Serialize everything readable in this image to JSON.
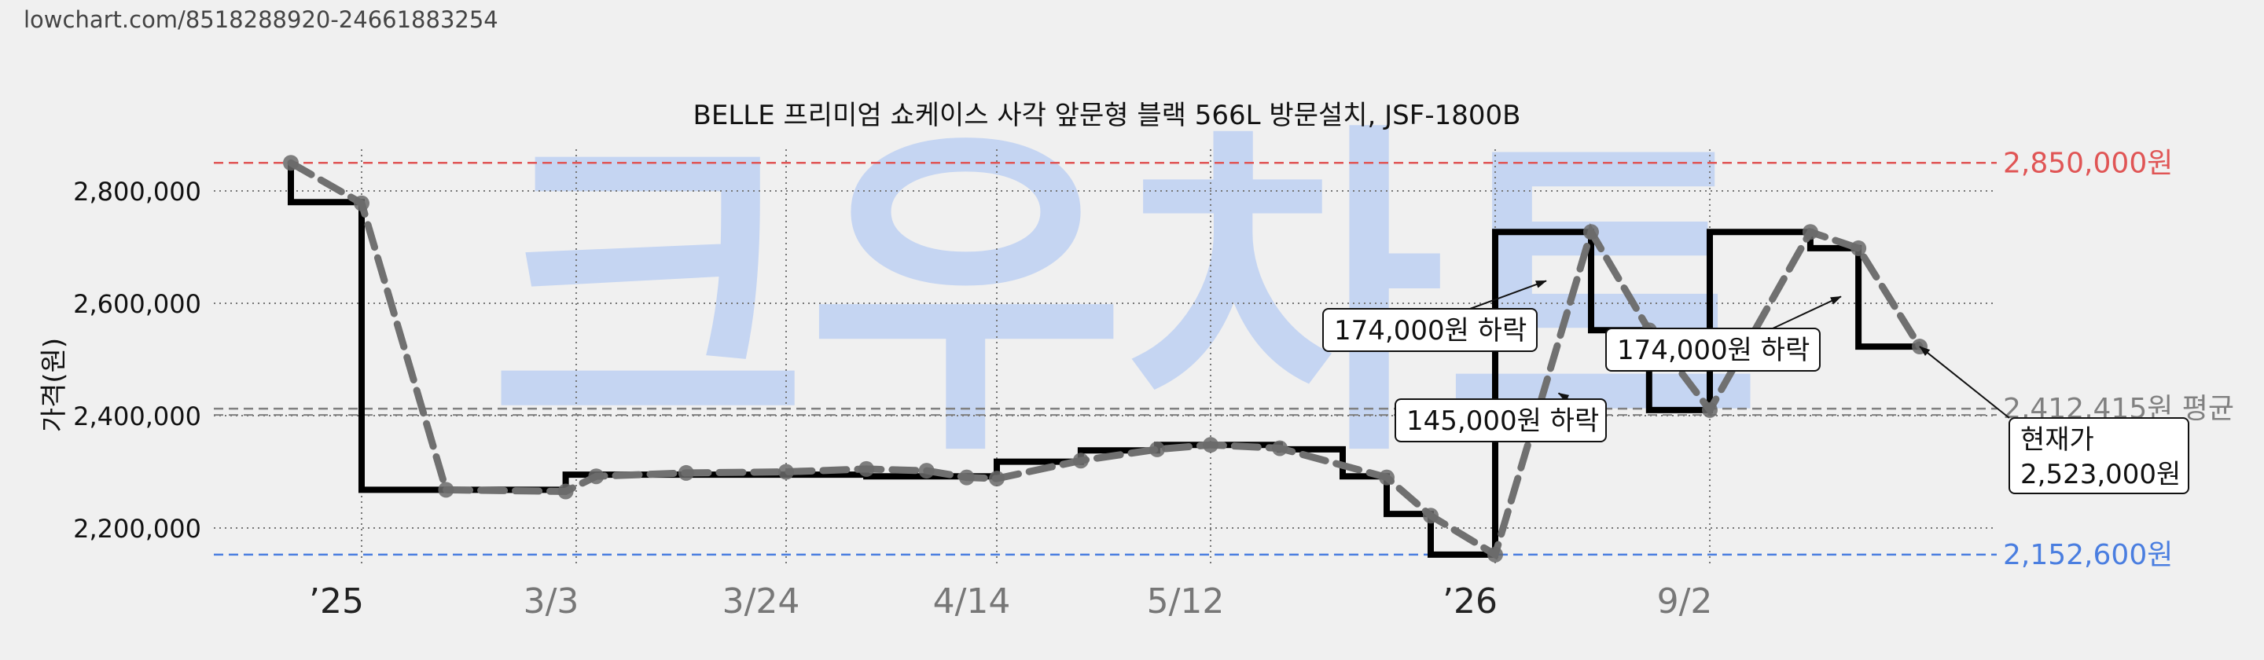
{
  "header": {
    "url": "lowchart.com/8518288920-24661883254"
  },
  "watermark": "크우차트",
  "chart_data": {
    "type": "line",
    "title": "BELLE 프리미엄 쇼케이스 사각 앞문형 블랙 566L 방문설치, JSF-1800B",
    "ylabel": "가격(원)",
    "xlabel": "",
    "ylim": [
      2140000,
      2870000
    ],
    "xlim": [
      "2024-12-16",
      "2026-10-30"
    ],
    "grid": true,
    "yticks": [
      {
        "value": 2200000,
        "label": "2,200,000"
      },
      {
        "value": 2400000,
        "label": "2,400,000"
      },
      {
        "value": 2600000,
        "label": "2,600,000"
      },
      {
        "value": 2800000,
        "label": "2,800,000"
      }
    ],
    "xticks": [
      {
        "date": "2025-01-01",
        "label": "’25",
        "emphasis": true
      },
      {
        "date": "2025-03-03",
        "label": "3/3",
        "emphasis": false
      },
      {
        "date": "2025-03-24",
        "label": "3/24",
        "emphasis": false
      },
      {
        "date": "2025-04-14",
        "label": "4/14",
        "emphasis": false
      },
      {
        "date": "2025-05-12",
        "label": "5/12",
        "emphasis": false
      },
      {
        "date": "2026-01-01",
        "label": "’26",
        "emphasis": true
      },
      {
        "date": "2026-09-02",
        "label": "9/2",
        "emphasis": false
      }
    ],
    "series": [
      {
        "style": "step",
        "color": "#000000",
        "points": [
          [
            "2024-12-20",
            2850000
          ],
          [
            "2024-12-20",
            2780000
          ],
          [
            "2025-01-01",
            2780000
          ],
          [
            "2025-01-01",
            2268000
          ],
          [
            "2025-02-28",
            2268000
          ],
          [
            "2025-02-28",
            2295000
          ],
          [
            "2025-04-01",
            2295000
          ],
          [
            "2025-04-01",
            2292000
          ],
          [
            "2025-04-14",
            2292000
          ],
          [
            "2025-04-14",
            2318000
          ],
          [
            "2025-04-25",
            2318000
          ],
          [
            "2025-04-25",
            2338000
          ],
          [
            "2025-05-05",
            2338000
          ],
          [
            "2025-05-05",
            2348000
          ],
          [
            "2025-05-23",
            2348000
          ],
          [
            "2025-05-23",
            2340000
          ],
          [
            "2025-06-02",
            2340000
          ],
          [
            "2025-06-02",
            2292000
          ],
          [
            "2025-06-09",
            2292000
          ],
          [
            "2025-06-09",
            2225000
          ],
          [
            "2025-06-16",
            2225000
          ],
          [
            "2025-06-16",
            2152600
          ],
          [
            "2026-01-01",
            2152600
          ],
          [
            "2026-01-01",
            2727000
          ],
          [
            "2026-04-20",
            2727000
          ],
          [
            "2026-04-20",
            2552000
          ],
          [
            "2026-06-25",
            2552000
          ],
          [
            "2026-06-25",
            2410000
          ],
          [
            "2026-09-02",
            2410000
          ],
          [
            "2026-09-02",
            2727000
          ],
          [
            "2026-09-25",
            2727000
          ],
          [
            "2026-09-25",
            2698000
          ],
          [
            "2026-10-06",
            2698000
          ],
          [
            "2026-10-06",
            2523000
          ],
          [
            "2026-10-20",
            2523000
          ]
        ]
      },
      {
        "style": "dashed-markers",
        "color": "#707070",
        "points": [
          [
            "2024-12-20",
            2850000
          ],
          [
            "2025-01-01",
            2778000
          ],
          [
            "2025-01-25",
            2268000
          ],
          [
            "2025-02-28",
            2265000
          ],
          [
            "2025-03-05",
            2292000
          ],
          [
            "2025-03-14",
            2298000
          ],
          [
            "2025-03-24",
            2300000
          ],
          [
            "2025-04-01",
            2305000
          ],
          [
            "2025-04-07",
            2302000
          ],
          [
            "2025-04-11",
            2290000
          ],
          [
            "2025-04-14",
            2288000
          ],
          [
            "2025-04-25",
            2320000
          ],
          [
            "2025-05-05",
            2340000
          ],
          [
            "2025-05-12",
            2348000
          ],
          [
            "2025-05-23",
            2342000
          ],
          [
            "2025-06-09",
            2290000
          ],
          [
            "2025-06-16",
            2222000
          ],
          [
            "2026-01-01",
            2152600
          ],
          [
            "2026-04-20",
            2727000
          ],
          [
            "2026-06-25",
            2552000
          ],
          [
            "2026-09-02",
            2410000
          ],
          [
            "2026-09-25",
            2727000
          ],
          [
            "2026-10-06",
            2698000
          ],
          [
            "2026-10-20",
            2523000
          ]
        ]
      }
    ],
    "reference_lines": [
      {
        "value": 2850000,
        "label": "2,850,000원",
        "color": "#e05555",
        "style": "dashed"
      },
      {
        "value": 2152600,
        "label": "2,152,600원",
        "color": "#4a7ee0",
        "style": "dashed"
      },
      {
        "value": 2412415,
        "label": "2,412,415원 평균",
        "color": "#808080",
        "style": "dashed"
      }
    ],
    "annotations": [
      {
        "text": "174,000원 하락",
        "target": [
          "2026-02-28",
          2640000
        ]
      },
      {
        "text": "145,000원 하락",
        "target": [
          "2026-03-14",
          2440000
        ]
      },
      {
        "text": "174,000원 하락",
        "target": [
          "2026-10-02",
          2612000
        ]
      },
      {
        "text": [
          "현재가",
          "2,523,000원"
        ],
        "target": [
          "2026-10-20",
          2523000
        ]
      }
    ]
  }
}
